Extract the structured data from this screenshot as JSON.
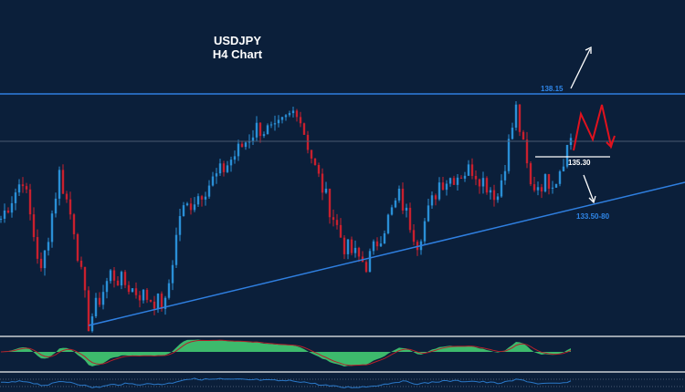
{
  "chart_data": {
    "type": "candlestick",
    "title": "USDJPY",
    "subtitle": "H4 Chart",
    "symbol": "USDJPY",
    "timeframe": "H4",
    "price_path_keypoints": {
      "candle_index": [
        0,
        6,
        11,
        16,
        20,
        24,
        30,
        37,
        45,
        49,
        61,
        70,
        75,
        81,
        86,
        94,
        100,
        109,
        114,
        120,
        129,
        136,
        141,
        145,
        152,
        156
      ],
      "close": [
        132.5,
        134.35,
        130.0,
        134.55,
        132.08,
        127.74,
        130.0,
        129.18,
        128.56,
        132.7,
        134.76,
        136.62,
        136.4,
        137.53,
        134.76,
        131.25,
        130.42,
        133.52,
        131.45,
        134.14,
        134.76,
        133.52,
        137.45,
        133.93,
        134.35,
        136.21
      ]
    },
    "levels": {
      "resistance": {
        "value": 138.15,
        "label": "138.15"
      },
      "pivot": {
        "value": 135.3,
        "label": "135.30"
      },
      "support": {
        "value": 133.65,
        "label": "133.50-80"
      }
    },
    "ylim": [
      127.0,
      140.5
    ],
    "indicators": [
      "histogram oscillator with signal line",
      "line oscillator"
    ],
    "colors": {
      "background": "#0b1f3a",
      "bull": "#2a8fd6",
      "bear": "#c8202e",
      "level_line": "#2f7fe0",
      "forecast": "#e0121e",
      "histogram": "#3dba6c",
      "signal": "#b3202a"
    }
  }
}
